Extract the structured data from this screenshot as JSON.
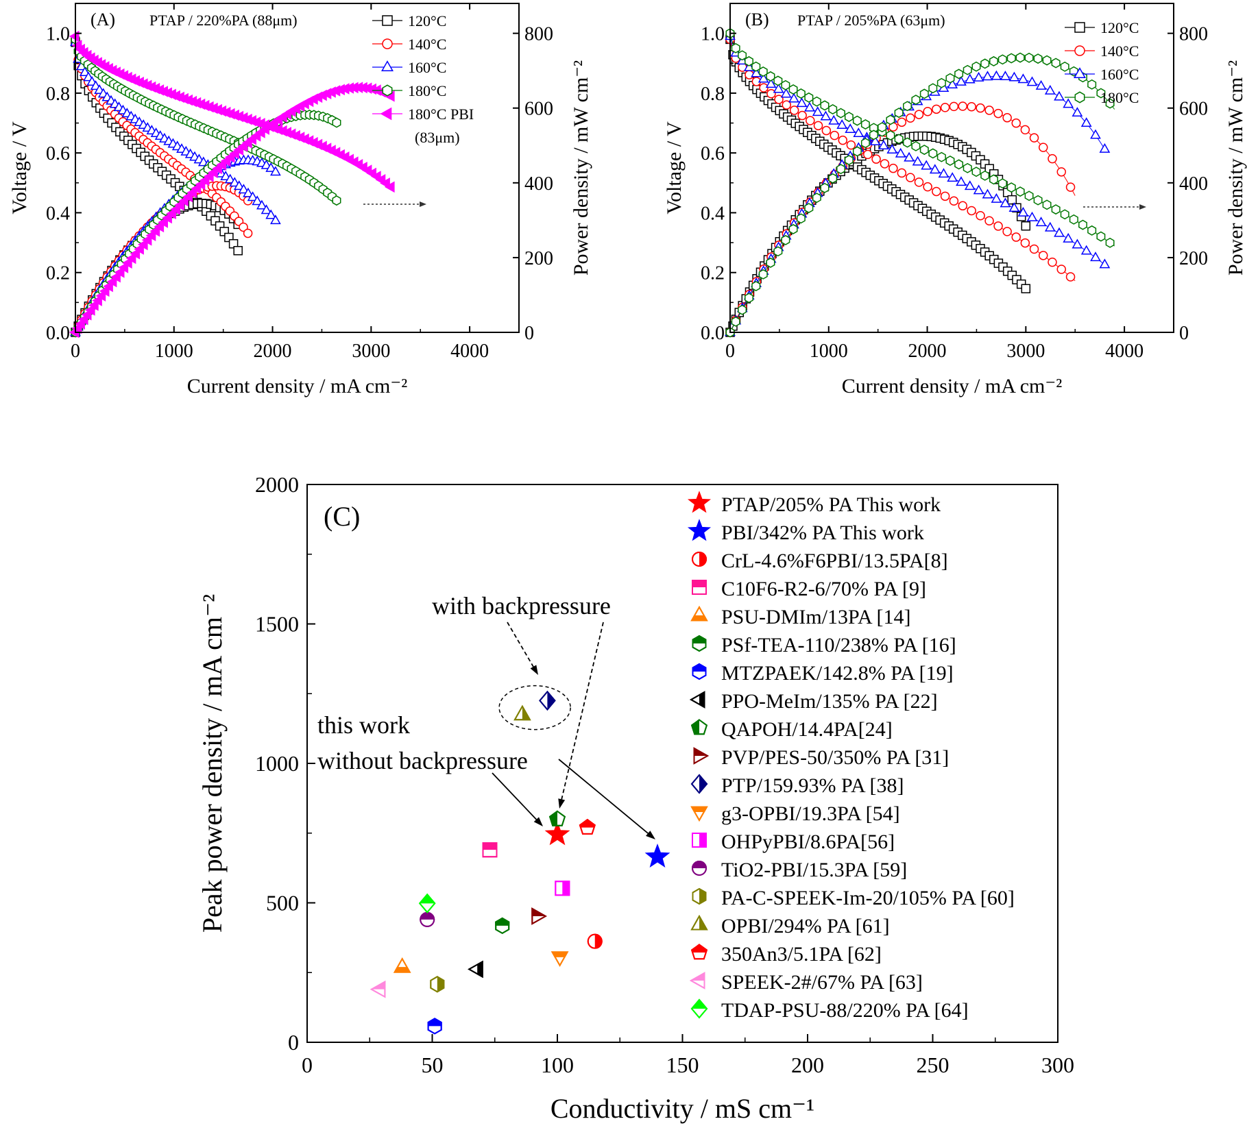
{
  "chart_data": [
    {
      "panel": "A",
      "type": "line",
      "panel_label": "(A)",
      "annotation": "PTAP / 220%PA (88μm)",
      "xlabel": "Current density / mA cm⁻²",
      "ylabel": "Voltage / V",
      "y2label": "Power density / mW cm⁻²",
      "xlim": [
        0,
        4500
      ],
      "ylim": [
        0,
        1.1
      ],
      "y2lim": [
        0,
        880
      ],
      "xticks": [
        "0",
        "1000",
        "2000",
        "3000",
        "4000"
      ],
      "yticks": [
        "0.0",
        "0.2",
        "0.4",
        "0.6",
        "0.8",
        "1.0"
      ],
      "y2ticks": [
        "0",
        "200",
        "400",
        "600",
        "800"
      ],
      "legend_position": "top-right",
      "series": [
        {
          "name": "120°C",
          "color": "#000000",
          "marker": "square",
          "filled": false,
          "xmax": 1650,
          "ocv": 0.97,
          "sv": 0.46,
          "ohm": 9.5e-05,
          "mt": 0.08,
          "peak": 345
        },
        {
          "name": "140°C",
          "color": "#ff0000",
          "marker": "circle",
          "filled": false,
          "xmax": 1750,
          "ocv": 0.98,
          "sv": 0.42,
          "ohm": 8.5e-05,
          "mt": 0.08,
          "peak": 392
        },
        {
          "name": "160°C",
          "color": "#0000ff",
          "marker": "triangle-up",
          "filled": false,
          "xmax": 2030,
          "ocv": 0.97,
          "sv": 0.37,
          "ohm": 7.2e-05,
          "mt": 0.08,
          "peak": 460
        },
        {
          "name": "180°C",
          "color": "#007700",
          "marker": "hexagon",
          "filled": false,
          "xmax": 2650,
          "ocv": 0.98,
          "sv": 0.3,
          "ohm": 6e-05,
          "mt": 0.08,
          "peak": 582
        },
        {
          "name": "180°C PBI",
          "name_line2": "(83μm)",
          "color": "#ff00ff",
          "marker": "triangle-left",
          "filled": true,
          "xmax": 3200,
          "ocv": 0.99,
          "sv": 0.25,
          "ohm": 4.8e-05,
          "mt": 0.1,
          "peak": 655
        }
      ],
      "arrow": "power density curves read on right axis"
    },
    {
      "panel": "B",
      "type": "line",
      "panel_label": "(B)",
      "annotation": "PTAP / 205%PA (63μm)",
      "xlabel": "Current density / mA cm⁻²",
      "ylabel": "Voltage / V",
      "y2label": "Power density / mW cm⁻²",
      "xlim": [
        0,
        4500
      ],
      "ylim": [
        0,
        1.1
      ],
      "y2lim": [
        0,
        880
      ],
      "xticks": [
        "0",
        "1000",
        "2000",
        "3000",
        "4000"
      ],
      "yticks": [
        "0.0",
        "0.2",
        "0.4",
        "0.6",
        "0.8",
        "1.0"
      ],
      "y2ticks": [
        "0",
        "200",
        "400",
        "600",
        "800"
      ],
      "legend_position": "top-right",
      "series": [
        {
          "name": "120°C",
          "color": "#000000",
          "marker": "square",
          "filled": false,
          "xmax": 3000,
          "ocv": 0.98,
          "sv": 0.4,
          "ohm": 0.000118,
          "mt": 0.08,
          "peak": 525
        },
        {
          "name": "140°C",
          "color": "#ff0000",
          "marker": "circle",
          "filled": false,
          "xmax": 3500,
          "ocv": 0.98,
          "sv": 0.36,
          "ohm": 0.000105,
          "mt": 0.08,
          "peak": 605
        },
        {
          "name": "160°C",
          "color": "#0000ff",
          "marker": "triangle-up",
          "filled": false,
          "xmax": 3800,
          "ocv": 0.99,
          "sv": 0.33,
          "ohm": 9.3e-05,
          "mt": 0.08,
          "peak": 685
        },
        {
          "name": "180°C",
          "color": "#007700",
          "marker": "hexagon",
          "filled": false,
          "xmax": 3900,
          "ocv": 1.0,
          "sv": 0.3,
          "ohm": 8.5e-05,
          "mt": 0.08,
          "peak": 735
        }
      ],
      "arrow": "power density curves read on right axis"
    },
    {
      "panel": "C",
      "type": "scatter",
      "panel_label": "(C)",
      "xlabel": "Conductivity / mS cm⁻¹",
      "ylabel": "Peak power density / mA cm⁻²",
      "xlim": [
        0,
        300
      ],
      "ylim": [
        0,
        2000
      ],
      "xticks": [
        "0",
        "50",
        "100",
        "150",
        "200",
        "250",
        "300"
      ],
      "yticks": [
        "0",
        "500",
        "1000",
        "1500",
        "2000"
      ],
      "legend_position": "top-right",
      "annotations": {
        "backpressure": "with backpressure",
        "this_work_1": "this work",
        "this_work_2": "without backpressure"
      },
      "points": [
        {
          "name": "PTAP/205% PA This work",
          "x": 100,
          "y": 745,
          "marker": "star",
          "color": "#ff0000",
          "style": "filled"
        },
        {
          "name": "PBI/342% PA This work",
          "x": 140,
          "y": 665,
          "marker": "star",
          "color": "#0000ff",
          "style": "filled"
        },
        {
          "name": "CrL-4.6%F6PBI/13.5PA[8]",
          "x": 115,
          "y": 362,
          "marker": "circle",
          "color": "#ff0000",
          "style": "half-right"
        },
        {
          "name": "C10F6-R2-6/70% PA [9]",
          "x": 73,
          "y": 690,
          "marker": "square",
          "color": "#ff1493",
          "style": "half-top"
        },
        {
          "name": "PSU-DMIm/13PA [14]",
          "x": 38,
          "y": 270,
          "marker": "triangle-up",
          "color": "#ff7f00",
          "style": "half-bottom"
        },
        {
          "name": "PSf-TEA-110/238% PA [16]",
          "x": 78,
          "y": 418,
          "marker": "hexagon",
          "color": "#007700",
          "style": "half-top"
        },
        {
          "name": "MTZPAEK/142.8% PA [19]",
          "x": 51,
          "y": 58,
          "marker": "hexagon",
          "color": "#0000ff",
          "style": "half-top"
        },
        {
          "name": "PPO-MeIm/135% PA [22]",
          "x": 68,
          "y": 262,
          "marker": "triangle-left",
          "color": "#000000",
          "style": "half-right"
        },
        {
          "name": "QAPOH/14.4PA[24]",
          "x": 100,
          "y": 800,
          "marker": "pentagon",
          "color": "#007700",
          "style": "half-left"
        },
        {
          "name": "PVP/PES-50/350% PA [31]",
          "x": 92,
          "y": 452,
          "marker": "triangle-right",
          "color": "#8b0000",
          "style": "half-top"
        },
        {
          "name": "PTP/159.93% PA [38]",
          "x": 96,
          "y": 1225,
          "marker": "diamond",
          "color": "#000080",
          "style": "half-right"
        },
        {
          "name": "g3-OPBI/19.3PA  [54]",
          "x": 101,
          "y": 305,
          "marker": "triangle-down",
          "color": "#ff7f00",
          "style": "half-top"
        },
        {
          "name": "OHPyPBI/8.6PA[56]",
          "x": 102,
          "y": 552,
          "marker": "square",
          "color": "#ff00ff",
          "style": "half-right"
        },
        {
          "name": "TiO2-PBI/15.3PA [59]",
          "x": 48,
          "y": 440,
          "marker": "circle",
          "color": "#800080",
          "style": "half-top"
        },
        {
          "name": "PA-C-SPEEK-Im-20/105% PA [60]",
          "x": 52,
          "y": 208,
          "marker": "hexagon",
          "color": "#808000",
          "style": "half-right"
        },
        {
          "name": "OPBI/294% PA [61]",
          "x": 86,
          "y": 1175,
          "marker": "triangle-up",
          "color": "#808000",
          "style": "half-right"
        },
        {
          "name": "350An3/5.1PA [62]",
          "x": 112,
          "y": 770,
          "marker": "pentagon",
          "color": "#ff0000",
          "style": "half-top"
        },
        {
          "name": "SPEEK-2#/67% PA [63]",
          "x": 29,
          "y": 190,
          "marker": "triangle-left",
          "color": "#ff88dd",
          "style": "half-top"
        },
        {
          "name": "TDAP-PSU-88/220% PA [64]",
          "x": 48,
          "y": 498,
          "marker": "diamond",
          "color": "#00ff00",
          "style": "half-top"
        }
      ]
    }
  ]
}
